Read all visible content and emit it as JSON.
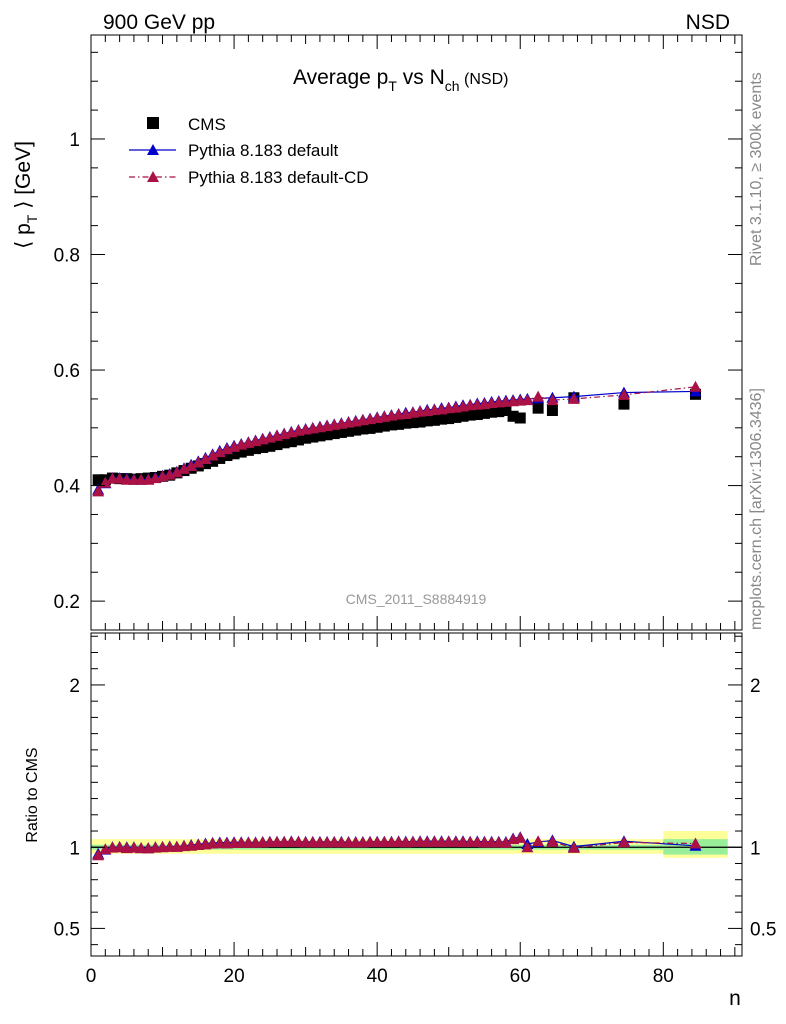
{
  "header": {
    "left_label": "900 GeV pp",
    "right_label": "NSD"
  },
  "side_labels": {
    "rivet": "Rivet 3.1.10, ≥ 300k events",
    "mcplots": "mcplots.cern.ch [arXiv:1306.3436]"
  },
  "watermark": "CMS_2011_S8884919",
  "chart_data": [
    {
      "type": "scatter",
      "title": "Average p_T vs N_ch (NSD)",
      "title_parts": {
        "main": "Average p",
        "sub1": "T",
        "mid": " vs N",
        "sub2": "ch",
        "tail": " (NSD)"
      },
      "ylabel": "⟨ p_T ⟩ [GeV]",
      "ylabel_parts": {
        "main": "⟨ p",
        "sub": "T",
        "tail": " ⟩ [GeV]"
      },
      "xlabel": "n",
      "xlim": [
        0,
        91
      ],
      "ylim": [
        0.15,
        1.18
      ],
      "y_ticks": [
        0.2,
        0.4,
        0.6,
        0.8,
        1.0
      ],
      "y_tick_labels": [
        "0.2",
        "0.4",
        "0.6",
        "0.8",
        "1"
      ],
      "legend_position": "top-left",
      "legend": [
        {
          "key": "cms",
          "label": "CMS"
        },
        {
          "key": "def",
          "label": "Pythia 8.183 default"
        },
        {
          "key": "cd",
          "label": "Pythia 8.183 default-CD"
        }
      ],
      "colors": {
        "cms": "#000000",
        "def": "#0000cc",
        "cd": "#aa1144"
      },
      "series": [
        {
          "key": "cms",
          "name": "CMS",
          "x": [
            1,
            2,
            3,
            4,
            5,
            6,
            7,
            8,
            9,
            10,
            11,
            12,
            13,
            14,
            15,
            16,
            17,
            18,
            19,
            20,
            21,
            22,
            23,
            24,
            25,
            26,
            27,
            28,
            29,
            30,
            31,
            32,
            33,
            34,
            35,
            36,
            37,
            38,
            39,
            40,
            41,
            42,
            43,
            44,
            45,
            46,
            47,
            48,
            49,
            50,
            51,
            52,
            53,
            54,
            55,
            56,
            57,
            58,
            59,
            60,
            62.5,
            64.5,
            67.5,
            74.5,
            84.5
          ],
          "y": [
            0.41,
            0.41,
            0.413,
            0.412,
            0.412,
            0.411,
            0.412,
            0.413,
            0.414,
            0.416,
            0.418,
            0.422,
            0.426,
            0.43,
            0.434,
            0.438,
            0.442,
            0.447,
            0.452,
            0.455,
            0.458,
            0.461,
            0.464,
            0.466,
            0.468,
            0.471,
            0.474,
            0.476,
            0.479,
            0.482,
            0.484,
            0.486,
            0.488,
            0.49,
            0.492,
            0.494,
            0.496,
            0.498,
            0.499,
            0.501,
            0.503,
            0.505,
            0.506,
            0.508,
            0.509,
            0.51,
            0.512,
            0.513,
            0.515,
            0.516,
            0.518,
            0.52,
            0.522,
            0.523,
            0.525,
            0.527,
            0.528,
            0.53,
            0.52,
            0.517,
            0.534,
            0.53,
            0.552,
            0.541,
            0.558
          ]
        },
        {
          "key": "def",
          "name": "Pythia 8.183 default",
          "x": [
            1,
            2,
            3,
            4,
            5,
            6,
            7,
            8,
            9,
            10,
            11,
            12,
            13,
            14,
            15,
            16,
            17,
            18,
            19,
            20,
            21,
            22,
            23,
            24,
            25,
            26,
            27,
            28,
            29,
            30,
            31,
            32,
            33,
            34,
            35,
            36,
            37,
            38,
            39,
            40,
            41,
            42,
            43,
            44,
            45,
            46,
            47,
            48,
            49,
            50,
            51,
            52,
            53,
            54,
            55,
            56,
            57,
            58,
            59,
            60,
            61,
            62.5,
            64.5,
            67.5,
            74.5,
            84.5
          ],
          "y": [
            0.393,
            0.404,
            0.413,
            0.413,
            0.412,
            0.411,
            0.41,
            0.411,
            0.414,
            0.417,
            0.42,
            0.424,
            0.43,
            0.436,
            0.442,
            0.448,
            0.454,
            0.46,
            0.465,
            0.469,
            0.472,
            0.475,
            0.478,
            0.481,
            0.484,
            0.487,
            0.49,
            0.493,
            0.496,
            0.498,
            0.5,
            0.502,
            0.504,
            0.506,
            0.508,
            0.51,
            0.512,
            0.514,
            0.516,
            0.518,
            0.52,
            0.522,
            0.524,
            0.526,
            0.527,
            0.529,
            0.531,
            0.532,
            0.534,
            0.535,
            0.537,
            0.539,
            0.54,
            0.542,
            0.543,
            0.545,
            0.546,
            0.547,
            0.548,
            0.549,
            0.55,
            0.551,
            0.552,
            0.554,
            0.561,
            0.563
          ]
        },
        {
          "key": "cd",
          "name": "Pythia 8.183 default-CD",
          "x": [
            1,
            2,
            3,
            4,
            5,
            6,
            7,
            8,
            9,
            10,
            11,
            12,
            13,
            14,
            15,
            16,
            17,
            18,
            19,
            20,
            21,
            22,
            23,
            24,
            25,
            26,
            27,
            28,
            29,
            30,
            31,
            32,
            33,
            34,
            35,
            36,
            37,
            38,
            39,
            40,
            41,
            42,
            43,
            44,
            45,
            46,
            47,
            48,
            49,
            50,
            51,
            52,
            53,
            54,
            55,
            56,
            57,
            58,
            59,
            60,
            61,
            62.5,
            64.5,
            67.5,
            74.5,
            84.5
          ],
          "y": [
            0.39,
            0.405,
            0.412,
            0.412,
            0.41,
            0.41,
            0.41,
            0.41,
            0.413,
            0.416,
            0.419,
            0.423,
            0.429,
            0.434,
            0.44,
            0.446,
            0.452,
            0.458,
            0.463,
            0.467,
            0.471,
            0.474,
            0.477,
            0.48,
            0.483,
            0.486,
            0.489,
            0.492,
            0.495,
            0.497,
            0.499,
            0.501,
            0.503,
            0.505,
            0.507,
            0.509,
            0.511,
            0.513,
            0.515,
            0.517,
            0.519,
            0.521,
            0.523,
            0.524,
            0.526,
            0.528,
            0.529,
            0.531,
            0.532,
            0.534,
            0.535,
            0.537,
            0.539,
            0.54,
            0.541,
            0.543,
            0.544,
            0.545,
            0.546,
            0.547,
            0.548,
            0.554,
            0.548,
            0.55,
            0.557,
            0.571
          ]
        }
      ]
    },
    {
      "type": "line",
      "ylabel": "Ratio to CMS",
      "xlabel": "n",
      "xlim": [
        0,
        91
      ],
      "ylim": [
        0.33,
        2.32
      ],
      "y_ticks": [
        0.5,
        1,
        2
      ],
      "y_tick_labels": [
        "0.5",
        "1",
        "2"
      ],
      "x_ticks": [
        0,
        20,
        40,
        60,
        80
      ],
      "x_tick_labels": [
        "0",
        "20",
        "40",
        "60",
        "80"
      ],
      "reference_line": 1,
      "uncertainty_bands": [
        {
          "x_from": 0,
          "x_to": 80,
          "green": [
            0.985,
            1.015
          ],
          "yellow": [
            0.96,
            1.05
          ]
        },
        {
          "x_from": 80,
          "x_to": 89,
          "green": [
            0.955,
            1.05
          ],
          "yellow": [
            0.935,
            1.1
          ]
        }
      ],
      "series": [
        {
          "key": "def",
          "x": [
            1,
            2,
            3,
            4,
            5,
            6,
            7,
            8,
            9,
            10,
            11,
            12,
            13,
            14,
            15,
            16,
            17,
            18,
            19,
            20,
            21,
            22,
            23,
            24,
            25,
            26,
            27,
            28,
            29,
            30,
            31,
            32,
            33,
            34,
            35,
            36,
            37,
            38,
            39,
            40,
            41,
            42,
            43,
            44,
            45,
            46,
            47,
            48,
            49,
            50,
            51,
            52,
            53,
            54,
            55,
            56,
            57,
            58,
            59,
            60,
            61,
            62.5,
            64.5,
            67.5,
            74.5,
            84.5
          ],
          "y": [
            0.96,
            0.985,
            1.0,
            1.002,
            1.0,
            1.0,
            0.995,
            0.995,
            1.0,
            1.002,
            1.005,
            1.004,
            1.009,
            1.014,
            1.018,
            1.023,
            1.027,
            1.029,
            1.029,
            1.031,
            1.031,
            1.03,
            1.03,
            1.032,
            1.034,
            1.034,
            1.034,
            1.036,
            1.035,
            1.033,
            1.033,
            1.033,
            1.033,
            1.033,
            1.033,
            1.032,
            1.032,
            1.032,
            1.034,
            1.034,
            1.034,
            1.034,
            1.036,
            1.035,
            1.035,
            1.037,
            1.037,
            1.037,
            1.037,
            1.037,
            1.037,
            1.037,
            1.034,
            1.036,
            1.034,
            1.034,
            1.034,
            1.032,
            1.054,
            1.062,
            1.02,
            1.032,
            1.042,
            1.004,
            1.037,
            1.009
          ]
        },
        {
          "key": "cd",
          "x": [
            1,
            2,
            3,
            4,
            5,
            6,
            7,
            8,
            9,
            10,
            11,
            12,
            13,
            14,
            15,
            16,
            17,
            18,
            19,
            20,
            21,
            22,
            23,
            24,
            25,
            26,
            27,
            28,
            29,
            30,
            31,
            32,
            33,
            34,
            35,
            36,
            37,
            38,
            39,
            40,
            41,
            42,
            43,
            44,
            45,
            46,
            47,
            48,
            49,
            50,
            51,
            52,
            53,
            54,
            55,
            56,
            57,
            58,
            59,
            60,
            61,
            62.5,
            64.5,
            67.5,
            74.5,
            84.5
          ],
          "y": [
            0.951,
            0.988,
            0.998,
            1.0,
            0.995,
            0.998,
            0.995,
            0.993,
            0.998,
            1.0,
            1.002,
            1.002,
            1.007,
            1.009,
            1.014,
            1.018,
            1.023,
            1.025,
            1.024,
            1.026,
            1.028,
            1.028,
            1.028,
            1.03,
            1.032,
            1.032,
            1.032,
            1.034,
            1.033,
            1.031,
            1.031,
            1.031,
            1.031,
            1.031,
            1.031,
            1.03,
            1.03,
            1.03,
            1.032,
            1.032,
            1.032,
            1.032,
            1.034,
            1.031,
            1.033,
            1.035,
            1.033,
            1.035,
            1.033,
            1.035,
            1.033,
            1.033,
            1.033,
            1.033,
            1.03,
            1.03,
            1.03,
            1.028,
            1.05,
            1.058,
            1.0,
            1.037,
            1.034,
            0.996,
            1.03,
            1.023
          ]
        }
      ]
    }
  ]
}
